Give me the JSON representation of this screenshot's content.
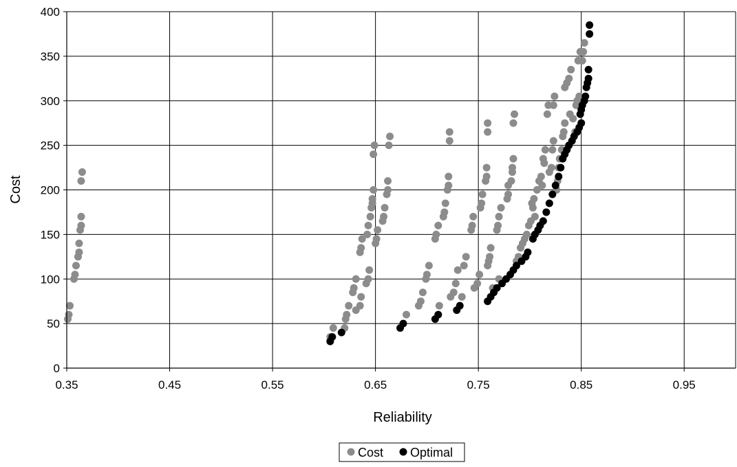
{
  "chart_data": {
    "type": "scatter",
    "xlabel": "Reliability",
    "ylabel": "Cost",
    "xlim": [
      0.35,
      1.0
    ],
    "ylim": [
      0,
      400
    ],
    "x_ticks": [
      "0.35",
      "0.45",
      "0.55",
      "0.65",
      "0.75",
      "0.85",
      "0.95"
    ],
    "x_tick_values": [
      0.35,
      0.45,
      0.55,
      0.65,
      0.75,
      0.85,
      0.95
    ],
    "y_ticks": [
      "0",
      "50",
      "100",
      "150",
      "200",
      "250",
      "300",
      "350",
      "400"
    ],
    "y_tick_values": [
      0,
      50,
      100,
      150,
      200,
      250,
      300,
      350,
      400
    ],
    "grid": true,
    "legend_position": "bottom",
    "series": [
      {
        "name": "Cost",
        "color": "#8c8c8c",
        "points": [
          [
            0.351,
            55
          ],
          [
            0.352,
            60
          ],
          [
            0.353,
            70
          ],
          [
            0.357,
            100
          ],
          [
            0.358,
            105
          ],
          [
            0.359,
            115
          ],
          [
            0.361,
            125
          ],
          [
            0.362,
            130
          ],
          [
            0.362,
            140
          ],
          [
            0.363,
            155
          ],
          [
            0.364,
            160
          ],
          [
            0.364,
            170
          ],
          [
            0.364,
            210
          ],
          [
            0.365,
            220
          ],
          [
            0.606,
            35
          ],
          [
            0.609,
            45
          ],
          [
            0.62,
            45
          ],
          [
            0.621,
            55
          ],
          [
            0.622,
            60
          ],
          [
            0.624,
            70
          ],
          [
            0.628,
            85
          ],
          [
            0.629,
            90
          ],
          [
            0.631,
            100
          ],
          [
            0.631,
            65
          ],
          [
            0.635,
            70
          ],
          [
            0.636,
            80
          ],
          [
            0.635,
            130
          ],
          [
            0.636,
            135
          ],
          [
            0.637,
            145
          ],
          [
            0.641,
            95
          ],
          [
            0.643,
            100
          ],
          [
            0.644,
            110
          ],
          [
            0.642,
            150
          ],
          [
            0.643,
            160
          ],
          [
            0.645,
            170
          ],
          [
            0.646,
            180
          ],
          [
            0.647,
            185
          ],
          [
            0.647,
            190
          ],
          [
            0.648,
            200
          ],
          [
            0.648,
            240
          ],
          [
            0.649,
            250
          ],
          [
            0.65,
            140
          ],
          [
            0.651,
            145
          ],
          [
            0.652,
            155
          ],
          [
            0.657,
            165
          ],
          [
            0.658,
            170
          ],
          [
            0.659,
            180
          ],
          [
            0.661,
            195
          ],
          [
            0.662,
            200
          ],
          [
            0.662,
            210
          ],
          [
            0.663,
            250
          ],
          [
            0.664,
            260
          ],
          [
            0.68,
            60
          ],
          [
            0.692,
            70
          ],
          [
            0.694,
            75
          ],
          [
            0.696,
            85
          ],
          [
            0.699,
            100
          ],
          [
            0.7,
            105
          ],
          [
            0.702,
            115
          ],
          [
            0.708,
            145
          ],
          [
            0.709,
            150
          ],
          [
            0.711,
            160
          ],
          [
            0.712,
            70
          ],
          [
            0.716,
            170
          ],
          [
            0.717,
            175
          ],
          [
            0.718,
            185
          ],
          [
            0.72,
            200
          ],
          [
            0.721,
            205
          ],
          [
            0.721,
            215
          ],
          [
            0.722,
            255
          ],
          [
            0.722,
            265
          ],
          [
            0.723,
            80
          ],
          [
            0.726,
            85
          ],
          [
            0.728,
            95
          ],
          [
            0.73,
            110
          ],
          [
            0.734,
            80
          ],
          [
            0.736,
            115
          ],
          [
            0.738,
            125
          ],
          [
            0.743,
            155
          ],
          [
            0.744,
            160
          ],
          [
            0.745,
            170
          ],
          [
            0.746,
            90
          ],
          [
            0.749,
            95
          ],
          [
            0.751,
            105
          ],
          [
            0.752,
            180
          ],
          [
            0.753,
            185
          ],
          [
            0.754,
            195
          ],
          [
            0.757,
            210
          ],
          [
            0.758,
            215
          ],
          [
            0.758,
            225
          ],
          [
            0.759,
            265
          ],
          [
            0.759,
            275
          ],
          [
            0.759,
            115
          ],
          [
            0.76,
            120
          ],
          [
            0.761,
            125
          ],
          [
            0.762,
            135
          ],
          [
            0.764,
            90
          ],
          [
            0.77,
            100
          ],
          [
            0.768,
            155
          ],
          [
            0.769,
            160
          ],
          [
            0.77,
            170
          ],
          [
            0.772,
            180
          ],
          [
            0.778,
            190
          ],
          [
            0.779,
            195
          ],
          [
            0.779,
            205
          ],
          [
            0.782,
            210
          ],
          [
            0.783,
            220
          ],
          [
            0.783,
            225
          ],
          [
            0.784,
            235
          ],
          [
            0.784,
            275
          ],
          [
            0.785,
            285
          ],
          [
            0.787,
            120
          ],
          [
            0.789,
            125
          ],
          [
            0.791,
            135
          ],
          [
            0.793,
            140
          ],
          [
            0.795,
            145
          ],
          [
            0.797,
            150
          ],
          [
            0.799,
            160
          ],
          [
            0.801,
            165
          ],
          [
            0.803,
            180
          ],
          [
            0.802,
            185
          ],
          [
            0.804,
            190
          ],
          [
            0.805,
            170
          ],
          [
            0.807,
            200
          ],
          [
            0.809,
            210
          ],
          [
            0.811,
            215
          ],
          [
            0.812,
            205
          ],
          [
            0.814,
            230
          ],
          [
            0.813,
            235
          ],
          [
            0.815,
            245
          ],
          [
            0.817,
            285
          ],
          [
            0.818,
            295
          ],
          [
            0.819,
            220
          ],
          [
            0.821,
            225
          ],
          [
            0.822,
            245
          ],
          [
            0.823,
            255
          ],
          [
            0.823,
            295
          ],
          [
            0.824,
            305
          ],
          [
            0.826,
            200
          ],
          [
            0.827,
            210
          ],
          [
            0.828,
            225
          ],
          [
            0.829,
            235
          ],
          [
            0.831,
            245
          ],
          [
            0.832,
            260
          ],
          [
            0.833,
            265
          ],
          [
            0.834,
            275
          ],
          [
            0.834,
            315
          ],
          [
            0.836,
            320
          ],
          [
            0.838,
            325
          ],
          [
            0.839,
            285
          ],
          [
            0.84,
            335
          ],
          [
            0.842,
            280
          ],
          [
            0.844,
            265
          ],
          [
            0.845,
            295
          ],
          [
            0.846,
            300
          ],
          [
            0.847,
            345
          ],
          [
            0.848,
            305
          ],
          [
            0.849,
            355
          ],
          [
            0.851,
            345
          ],
          [
            0.852,
            355
          ],
          [
            0.853,
            365
          ]
        ]
      },
      {
        "name": "Optimal",
        "color": "#000000",
        "points": [
          [
            0.606,
            30
          ],
          [
            0.608,
            35
          ],
          [
            0.617,
            40
          ],
          [
            0.674,
            45
          ],
          [
            0.677,
            50
          ],
          [
            0.708,
            55
          ],
          [
            0.711,
            60
          ],
          [
            0.729,
            65
          ],
          [
            0.732,
            70
          ],
          [
            0.759,
            75
          ],
          [
            0.762,
            80
          ],
          [
            0.765,
            85
          ],
          [
            0.768,
            90
          ],
          [
            0.773,
            95
          ],
          [
            0.777,
            100
          ],
          [
            0.781,
            105
          ],
          [
            0.784,
            110
          ],
          [
            0.787,
            115
          ],
          [
            0.792,
            120
          ],
          [
            0.796,
            125
          ],
          [
            0.798,
            130
          ],
          [
            0.803,
            145
          ],
          [
            0.805,
            150
          ],
          [
            0.808,
            155
          ],
          [
            0.81,
            160
          ],
          [
            0.813,
            165
          ],
          [
            0.816,
            175
          ],
          [
            0.819,
            185
          ],
          [
            0.822,
            195
          ],
          [
            0.825,
            205
          ],
          [
            0.828,
            215
          ],
          [
            0.83,
            225
          ],
          [
            0.832,
            235
          ],
          [
            0.834,
            240
          ],
          [
            0.836,
            245
          ],
          [
            0.838,
            250
          ],
          [
            0.841,
            255
          ],
          [
            0.843,
            260
          ],
          [
            0.846,
            265
          ],
          [
            0.848,
            270
          ],
          [
            0.85,
            275
          ],
          [
            0.849,
            285
          ],
          [
            0.85,
            290
          ],
          [
            0.851,
            295
          ],
          [
            0.853,
            300
          ],
          [
            0.854,
            305
          ],
          [
            0.855,
            315
          ],
          [
            0.856,
            320
          ],
          [
            0.857,
            325
          ],
          [
            0.857,
            335
          ],
          [
            0.858,
            375
          ],
          [
            0.858,
            385
          ]
        ]
      }
    ]
  }
}
